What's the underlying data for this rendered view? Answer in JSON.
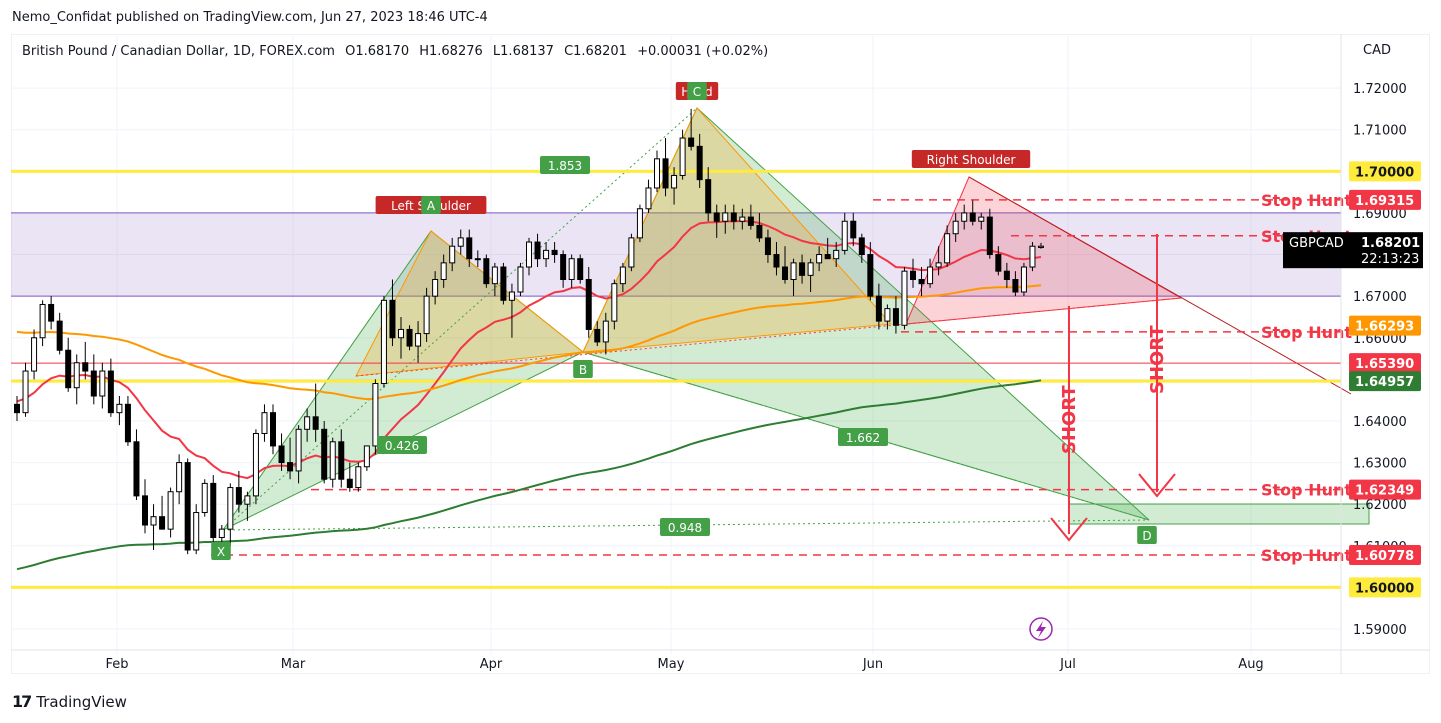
{
  "header": {
    "published_by": "Nemo_Confidat published on TradingView.com, Jun 27, 2023 18:46 UTC-4"
  },
  "legend": {
    "symbol": "British Pound / Canadian Dollar, 1D, FOREX.com",
    "open": "O1.68170",
    "high": "H1.68276",
    "low": "L1.68137",
    "close": "C1.68201",
    "change": "+0.00031 (+0.02%)"
  },
  "axis": {
    "currency": "CAD",
    "y_ticks": [
      "1.72000",
      "1.71000",
      "1.70000",
      "1.69000",
      "1.68000",
      "1.67000",
      "1.66000",
      "1.65000",
      "1.64000",
      "1.63000",
      "1.62000",
      "1.61000",
      "1.60000",
      "1.59000"
    ],
    "x_ticks": [
      "Feb",
      "Mar",
      "Apr",
      "May",
      "Jun",
      "Jul",
      "Aug"
    ]
  },
  "price_tags": {
    "symbol": "GBPCAD",
    "last": "1.68201",
    "countdown": "22:13:23",
    "levels": [
      {
        "text": "1.70000",
        "bg": "#ffeb3b",
        "fg": "#131722",
        "value": 1.7
      },
      {
        "text": "1.69315",
        "bg": "#f23645",
        "fg": "#ffffff",
        "value": 1.69315
      },
      {
        "text": "1.66293",
        "bg": "#ff9800",
        "fg": "#ffffff",
        "value": 1.66293
      },
      {
        "text": "1.65390",
        "bg": "#f23645",
        "fg": "#ffffff",
        "value": 1.6539
      },
      {
        "text": "1.64957",
        "bg": "#2e7d32",
        "fg": "#ffffff",
        "value": 1.64957
      },
      {
        "text": "1.62349",
        "bg": "#f23645",
        "fg": "#ffffff",
        "value": 1.62349
      },
      {
        "text": "1.60778",
        "bg": "#f23645",
        "fg": "#ffffff",
        "value": 1.60778
      },
      {
        "text": "1.60000",
        "bg": "#ffeb3b",
        "fg": "#131722",
        "value": 1.6
      }
    ]
  },
  "annotations": {
    "stop_hunt": "Stop Hunt",
    "short": "SHORT",
    "left_shoulder": "Left Shoulder",
    "right_shoulder": "Right Shoulder",
    "head": "Head",
    "points": [
      "X",
      "A",
      "B",
      "C",
      "D"
    ],
    "ratios": [
      "1.853",
      "0.426",
      "1.662",
      "0.948"
    ]
  },
  "chart_data": {
    "type": "candlestick",
    "title": "British Pound / Canadian Dollar, 1D, FOREX.com",
    "ylim": [
      1.584,
      1.733
    ],
    "y_scale": "linear",
    "x_ticks": [
      "Feb",
      "Mar",
      "Apr",
      "May",
      "Jun",
      "Jul",
      "Aug"
    ],
    "colors": {
      "up": "#ffffff",
      "down": "#000000",
      "ema_fast": "#f23645",
      "ema_mid": "#ff9800",
      "ema_slow": "#2e7d32",
      "stop_hunt": "#f23645",
      "yellow": "#ffeb3b",
      "purple": "#7e57c2"
    },
    "horizontal_levels": [
      1.7,
      1.69315,
      1.6845,
      1.66293,
      1.6539,
      1.64957,
      1.62349,
      1.60778,
      1.6
    ],
    "zone": [
      1.67,
      1.69
    ],
    "candles": [
      [
        1.644,
        1.646,
        1.64,
        1.642
      ],
      [
        1.642,
        1.654,
        1.641,
        1.652
      ],
      [
        1.652,
        1.662,
        1.65,
        1.66
      ],
      [
        1.66,
        1.669,
        1.658,
        1.668
      ],
      [
        1.668,
        1.67,
        1.662,
        1.664
      ],
      [
        1.664,
        1.666,
        1.656,
        1.657
      ],
      [
        1.657,
        1.66,
        1.647,
        1.648
      ],
      [
        1.648,
        1.656,
        1.644,
        1.654
      ],
      [
        1.654,
        1.659,
        1.65,
        1.652
      ],
      [
        1.652,
        1.656,
        1.644,
        1.646
      ],
      [
        1.646,
        1.654,
        1.643,
        1.652
      ],
      [
        1.652,
        1.655,
        1.641,
        1.642
      ],
      [
        1.642,
        1.646,
        1.639,
        1.644
      ],
      [
        1.644,
        1.646,
        1.634,
        1.635
      ],
      [
        1.635,
        1.638,
        1.621,
        1.622
      ],
      [
        1.622,
        1.626,
        1.613,
        1.615
      ],
      [
        1.615,
        1.62,
        1.609,
        1.617
      ],
      [
        1.617,
        1.622,
        1.614,
        1.614
      ],
      [
        1.614,
        1.624,
        1.612,
        1.623
      ],
      [
        1.623,
        1.632,
        1.62,
        1.63
      ],
      [
        1.63,
        1.631,
        1.608,
        1.609
      ],
      [
        1.609,
        1.62,
        1.608,
        1.618
      ],
      [
        1.618,
        1.626,
        1.617,
        1.625
      ],
      [
        1.625,
        1.627,
        1.61,
        1.612
      ],
      [
        1.612,
        1.615,
        1.609,
        1.614
      ],
      [
        1.614,
        1.625,
        1.61,
        1.624
      ],
      [
        1.624,
        1.628,
        1.618,
        1.62
      ],
      [
        1.62,
        1.623,
        1.616,
        1.622
      ],
      [
        1.622,
        1.638,
        1.62,
        1.637
      ],
      [
        1.637,
        1.644,
        1.635,
        1.642
      ],
      [
        1.642,
        1.644,
        1.632,
        1.634
      ],
      [
        1.634,
        1.637,
        1.628,
        1.63
      ],
      [
        1.63,
        1.636,
        1.626,
        1.628
      ],
      [
        1.628,
        1.639,
        1.625,
        1.638
      ],
      [
        1.638,
        1.643,
        1.635,
        1.641
      ],
      [
        1.641,
        1.649,
        1.635,
        1.638
      ],
      [
        1.638,
        1.64,
        1.625,
        1.626
      ],
      [
        1.626,
        1.636,
        1.624,
        1.635
      ],
      [
        1.635,
        1.638,
        1.624,
        1.626
      ],
      [
        1.626,
        1.63,
        1.623,
        1.624
      ],
      [
        1.624,
        1.63,
        1.623,
        1.629
      ],
      [
        1.629,
        1.634,
        1.628,
        1.634
      ],
      [
        1.634,
        1.65,
        1.632,
        1.649
      ],
      [
        1.649,
        1.67,
        1.648,
        1.669
      ],
      [
        1.669,
        1.674,
        1.658,
        1.66
      ],
      [
        1.66,
        1.665,
        1.655,
        1.662
      ],
      [
        1.662,
        1.663,
        1.657,
        1.658
      ],
      [
        1.658,
        1.664,
        1.654,
        1.661
      ],
      [
        1.661,
        1.672,
        1.659,
        1.67
      ],
      [
        1.67,
        1.676,
        1.668,
        1.674
      ],
      [
        1.674,
        1.68,
        1.672,
        1.678
      ],
      [
        1.678,
        1.684,
        1.676,
        1.682
      ],
      [
        1.682,
        1.686,
        1.68,
        1.684
      ],
      [
        1.684,
        1.686,
        1.677,
        1.679
      ],
      [
        1.679,
        1.681,
        1.677,
        1.679
      ],
      [
        1.679,
        1.68,
        1.672,
        1.673
      ],
      [
        1.673,
        1.678,
        1.67,
        1.677
      ],
      [
        1.677,
        1.678,
        1.668,
        1.669
      ],
      [
        1.669,
        1.673,
        1.66,
        1.671
      ],
      [
        1.671,
        1.678,
        1.67,
        1.677
      ],
      [
        1.677,
        1.684,
        1.675,
        1.683
      ],
      [
        1.683,
        1.685,
        1.677,
        1.679
      ],
      [
        1.679,
        1.683,
        1.677,
        1.681
      ],
      [
        1.681,
        1.683,
        1.678,
        1.68
      ],
      [
        1.68,
        1.681,
        1.672,
        1.674
      ],
      [
        1.674,
        1.68,
        1.672,
        1.679
      ],
      [
        1.679,
        1.68,
        1.673,
        1.674
      ],
      [
        1.674,
        1.677,
        1.66,
        1.662
      ],
      [
        1.662,
        1.664,
        1.658,
        1.659
      ],
      [
        1.659,
        1.666,
        1.656,
        1.664
      ],
      [
        1.664,
        1.674,
        1.662,
        1.673
      ],
      [
        1.673,
        1.678,
        1.671,
        1.677
      ],
      [
        1.677,
        1.685,
        1.676,
        1.684
      ],
      [
        1.684,
        1.692,
        1.683,
        1.691
      ],
      [
        1.691,
        1.698,
        1.69,
        1.696
      ],
      [
        1.696,
        1.705,
        1.695,
        1.703
      ],
      [
        1.703,
        1.708,
        1.694,
        1.696
      ],
      [
        1.696,
        1.701,
        1.692,
        1.699
      ],
      [
        1.699,
        1.71,
        1.698,
        1.708
      ],
      [
        1.708,
        1.715,
        1.705,
        1.706
      ],
      [
        1.706,
        1.709,
        1.696,
        1.698
      ],
      [
        1.698,
        1.701,
        1.688,
        1.69
      ],
      [
        1.69,
        1.692,
        1.684,
        1.688
      ],
      [
        1.688,
        1.692,
        1.685,
        1.69
      ],
      [
        1.69,
        1.692,
        1.686,
        1.688
      ],
      [
        1.688,
        1.691,
        1.686,
        1.689
      ],
      [
        1.689,
        1.692,
        1.686,
        1.687
      ],
      [
        1.687,
        1.69,
        1.683,
        1.684
      ],
      [
        1.684,
        1.686,
        1.678,
        1.68
      ],
      [
        1.68,
        1.683,
        1.675,
        1.677
      ],
      [
        1.677,
        1.682,
        1.673,
        1.674
      ],
      [
        1.674,
        1.679,
        1.67,
        1.678
      ],
      [
        1.678,
        1.68,
        1.673,
        1.675
      ],
      [
        1.675,
        1.679,
        1.671,
        1.678
      ],
      [
        1.678,
        1.682,
        1.676,
        1.68
      ],
      [
        1.68,
        1.684,
        1.679,
        1.679
      ],
      [
        1.679,
        1.683,
        1.677,
        1.681
      ],
      [
        1.681,
        1.69,
        1.68,
        1.688
      ],
      [
        1.688,
        1.69,
        1.682,
        1.684
      ],
      [
        1.684,
        1.685,
        1.678,
        1.68
      ],
      [
        1.68,
        1.683,
        1.669,
        1.67
      ],
      [
        1.67,
        1.673,
        1.662,
        1.664
      ],
      [
        1.664,
        1.668,
        1.662,
        1.667
      ],
      [
        1.667,
        1.67,
        1.661,
        1.663
      ],
      [
        1.663,
        1.677,
        1.662,
        1.676
      ],
      [
        1.676,
        1.679,
        1.672,
        1.674
      ],
      [
        1.674,
        1.677,
        1.67,
        1.673
      ],
      [
        1.673,
        1.679,
        1.672,
        1.677
      ],
      [
        1.677,
        1.682,
        1.675,
        1.678
      ],
      [
        1.678,
        1.687,
        1.677,
        1.685
      ],
      [
        1.685,
        1.69,
        1.683,
        1.688
      ],
      [
        1.688,
        1.692,
        1.686,
        1.69
      ],
      [
        1.69,
        1.693,
        1.687,
        1.688
      ],
      [
        1.688,
        1.69,
        1.686,
        1.689
      ],
      [
        1.689,
        1.691,
        1.679,
        1.68
      ],
      [
        1.68,
        1.682,
        1.675,
        1.676
      ],
      [
        1.676,
        1.678,
        1.672,
        1.674
      ],
      [
        1.674,
        1.676,
        1.67,
        1.671
      ],
      [
        1.671,
        1.678,
        1.67,
        1.677
      ],
      [
        1.677,
        1.683,
        1.676,
        1.682
      ],
      [
        1.6817,
        1.6828,
        1.6814,
        1.682
      ]
    ]
  }
}
